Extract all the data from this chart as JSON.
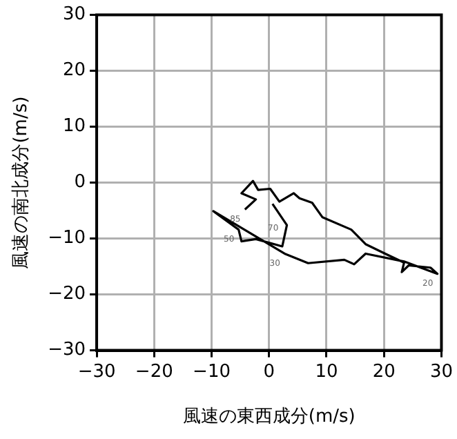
{
  "chart_data": {
    "type": "line",
    "xlabel": "風速の東西成分(m/s)",
    "ylabel": "風速の南北成分(m/s)",
    "x": [
      -4.2,
      -2.3,
      -4.8,
      -2.8,
      -1.9,
      0.2,
      1.8,
      4.3,
      5.3,
      7.5,
      9.3,
      14.3,
      16.8,
      20.2,
      23.5,
      23.1,
      24.3,
      28.1,
      29.3,
      23.5,
      16.8,
      14.8,
      13.1,
      6.8,
      2.7,
      -9.7,
      -6.9,
      -5.3,
      -4.8,
      -2.3,
      2.3,
      3.1,
      0.6
    ],
    "series": [
      {
        "color": "#000000",
        "values": [
          -4.8,
          -3.0,
          -1.9,
          0.3,
          -1.3,
          -1.1,
          -3.4,
          -1.9,
          -2.8,
          -3.6,
          -6.2,
          -8.4,
          -11.0,
          -12.7,
          -14.3,
          -16.0,
          -14.8,
          -15.2,
          -16.3,
          -14.1,
          -12.7,
          -14.6,
          -13.8,
          -14.4,
          -12.7,
          -5.1,
          -7.2,
          -8.4,
          -10.5,
          -10.1,
          -11.4,
          -7.6,
          -3.8
        ]
      }
    ],
    "xlim": [
      -30,
      30
    ],
    "ylim": [
      -30,
      30
    ],
    "xticks": [
      -30,
      -20,
      -10,
      0,
      10,
      20,
      30
    ],
    "yticks": [
      -30,
      -20,
      -10,
      0,
      10,
      20,
      30
    ],
    "grid": true,
    "legend": false,
    "annotations": [
      {
        "text": "20",
        "x": 29.3,
        "y": -16.3
      },
      {
        "text": "30",
        "x": 2.7,
        "y": -12.7
      },
      {
        "text": "50",
        "x": -5.3,
        "y": -8.4
      },
      {
        "text": "70",
        "x": 2.4,
        "y": -6.5
      },
      {
        "text": "85",
        "x": -4.2,
        "y": -4.8
      }
    ]
  }
}
